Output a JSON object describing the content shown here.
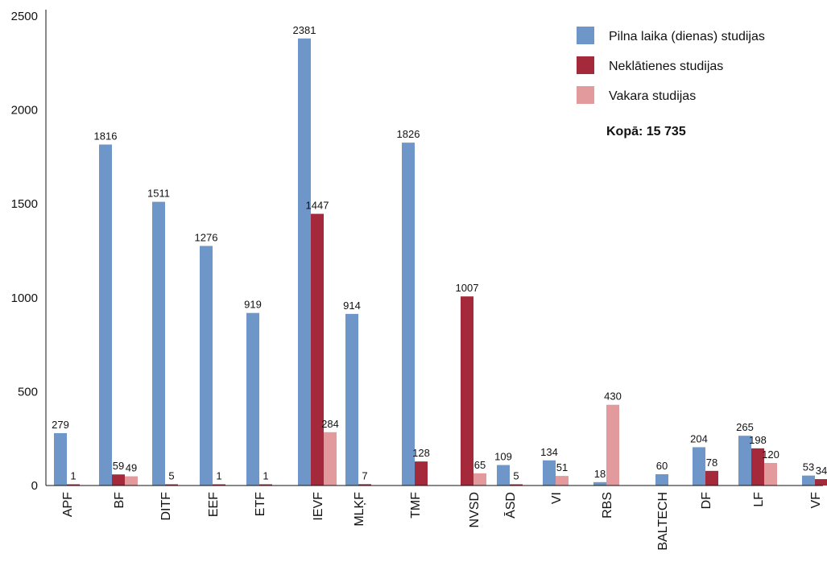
{
  "chart_data": {
    "type": "bar",
    "categories": [
      "APF",
      "BF",
      "DITF",
      "EEF",
      "ETF",
      "IEVF",
      "MLĶF",
      "TMF",
      "NVSD",
      "ĀSD",
      "VI",
      "RBS",
      "BALTECH",
      "DF",
      "LF",
      "VF"
    ],
    "series": [
      {
        "name": "Pilna laika (dienas) studijas",
        "color": "#6e96c8",
        "values": [
          279,
          1816,
          1511,
          1276,
          919,
          2381,
          914,
          1826,
          null,
          109,
          134,
          18,
          60,
          204,
          265,
          53
        ]
      },
      {
        "name": "Neklātienes studijas",
        "color": "#a4293a",
        "values": [
          1,
          59,
          5,
          1,
          1,
          1447,
          7,
          128,
          1007,
          5,
          null,
          null,
          null,
          78,
          198,
          34
        ]
      },
      {
        "name": "Vakara studijas",
        "color": "#e39a9d",
        "values": [
          null,
          49,
          null,
          null,
          null,
          284,
          null,
          null,
          65,
          null,
          51,
          430,
          null,
          null,
          120,
          null
        ]
      }
    ],
    "yticks": [
      0,
      500,
      1000,
      1500,
      2000,
      2500
    ],
    "ylim": [
      0,
      2500
    ],
    "legend_position": "top-right",
    "total_label": "Kopā: 15 735"
  }
}
